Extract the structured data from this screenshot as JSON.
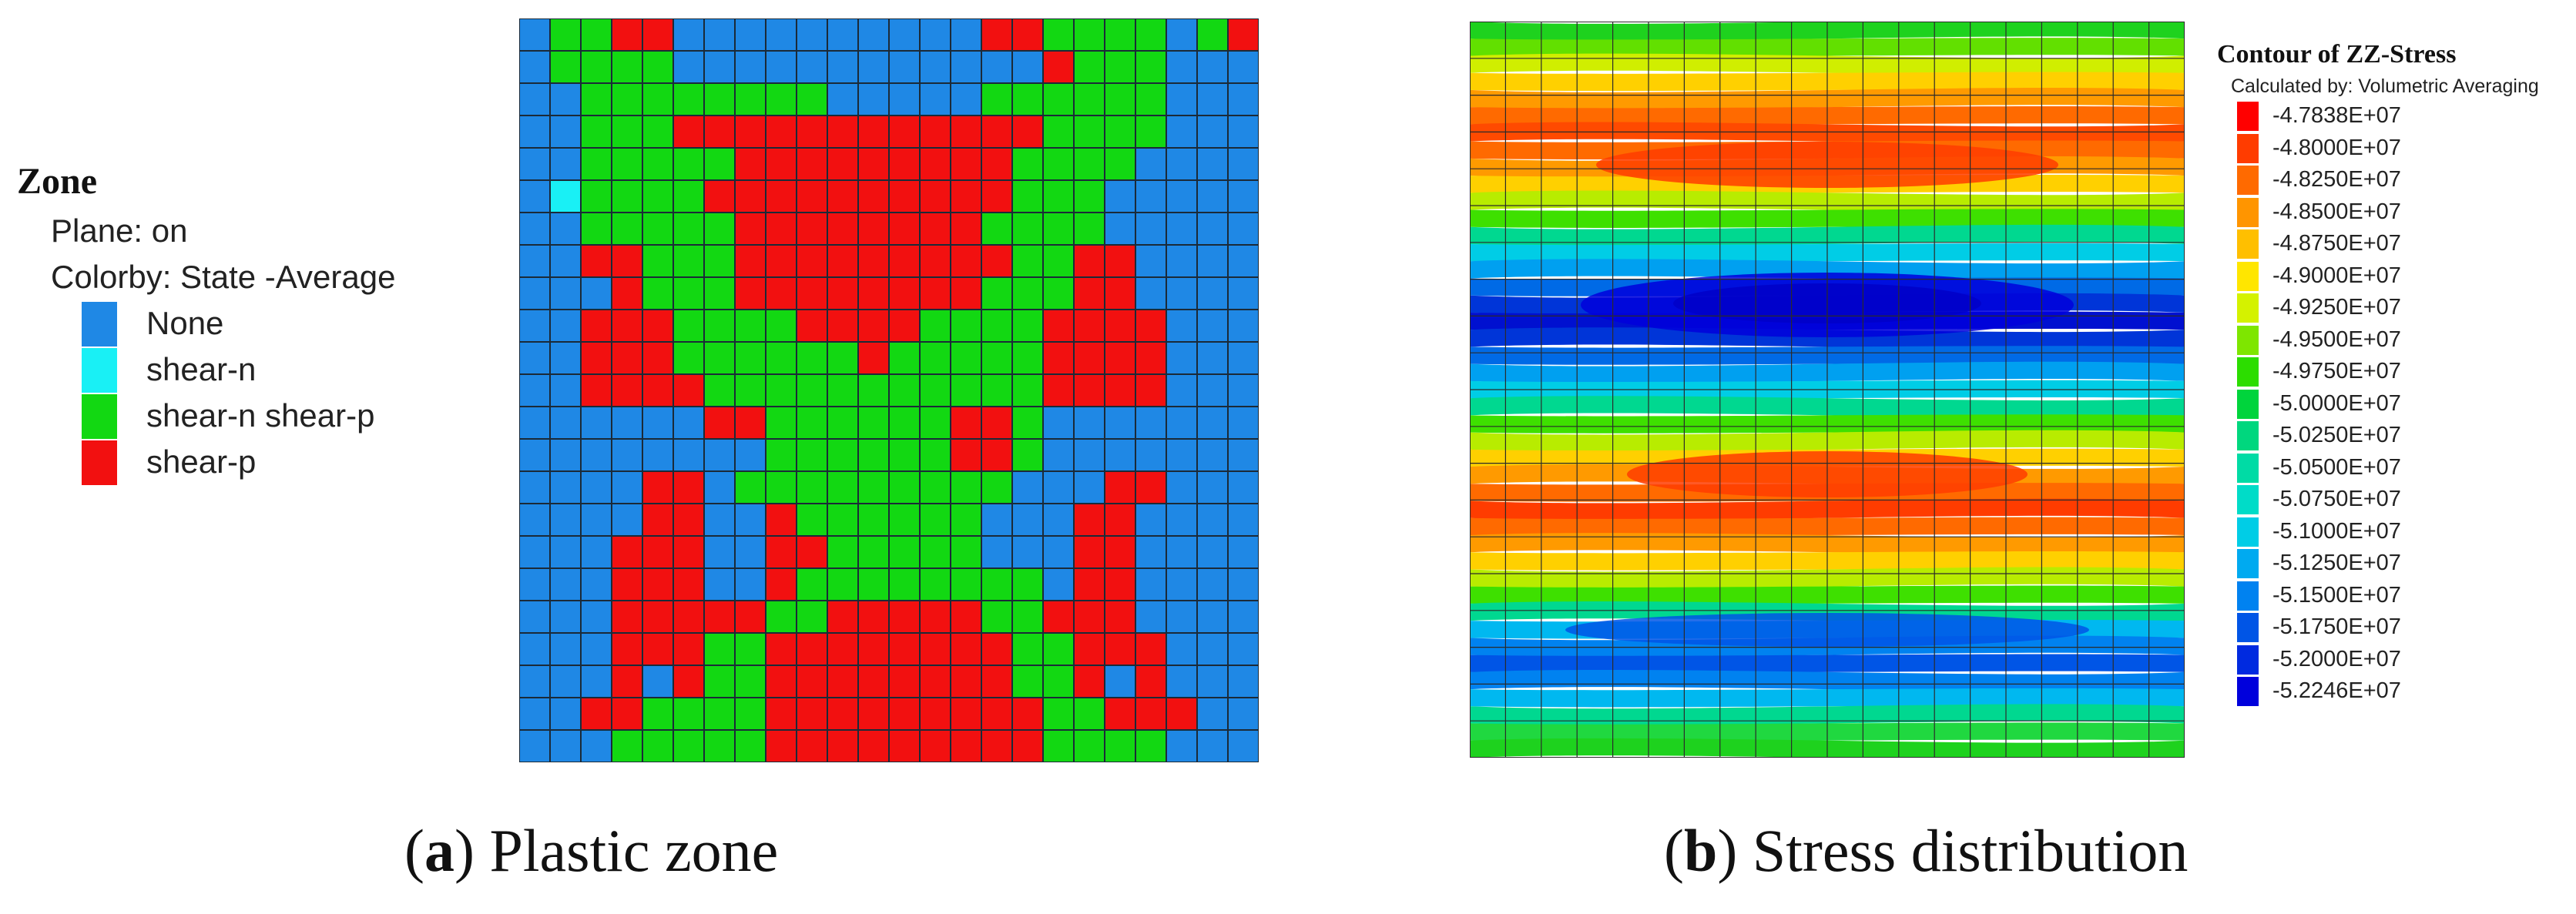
{
  "panel_a": {
    "legend": {
      "title": "Zone",
      "line1": "Plane: on",
      "line2": "Colorby: State  -Average",
      "items": [
        {
          "label": "None",
          "color": "#1f88e5"
        },
        {
          "label": "shear-n",
          "color": "#19f0f5"
        },
        {
          "label": "shear-n shear-p",
          "color": "#12d812"
        },
        {
          "label": "shear-p",
          "color": "#f21010"
        }
      ]
    },
    "grid": {
      "states": [
        "NSSPPNNNNNNNNNNPPSSSSNSP",
        "NSSSSNNNNNNNNNNNNPSSSNNN",
        "NNSSSSSSSSNNNNNSSSSSSNNN",
        "NNSSSPPPPPPPPPPPPSSSSNNN",
        "NNSSSSSPPPPPPPPPSSSSNNNN",
        "NCSSSSPPPPPPPPPPSSSNNNNN",
        "NNSSSSSPPPPPPPPSSSSNNNNN",
        "NNPPSSSPPPPPPPPPSSPPNNNN",
        "NNNPSSSPPPPPPPPSSSPPNNNN",
        "NNPPPSSSSPPPPSSSSPPPPNNN",
        "NNPPPSSSSSSPSSSSSPPPPNNN",
        "NNPPPPSSSSSSSSSSSPPPPNNN",
        "NNNNNNPPSSSSSSPPSNNNNNNN",
        "NNNNNNNNSSSSSSPPSNNNNNNN",
        "NNNNPPNSSSSSSSSSNNNPPNNN",
        "NNNNPPNNPSSSSSSNNNPPNNNN",
        "NNNPPPNNPPSSSSSNNNPPNNNN",
        "NNNPPPNNPSSSSSSSSNPPNNNN",
        "NNNPPPPPSSPPPPPSSPPPNNNN",
        "NNNPPPSSPPPPPPPPSSPPPNNN",
        "NNNPNPSSPPPPPPPPSSPNPNNN",
        "NNPPSSSSPPPPPPPPPSSPPPNN",
        "NNNSSSSSPPPPPPPPPSSSSNNN"
      ]
    },
    "caption": {
      "letter": "a",
      "text": "Plastic zone"
    }
  },
  "panel_b": {
    "legend": {
      "title": "Contour of ZZ-Stress",
      "subtitle": "Calculated by: Volumetric Averaging",
      "items": [
        {
          "label": "-4.7838E+07",
          "color": "#ff0000"
        },
        {
          "label": "-4.8000E+07",
          "color": "#ff3c00"
        },
        {
          "label": "-4.8250E+07",
          "color": "#ff6a00"
        },
        {
          "label": "-4.8500E+07",
          "color": "#ff9500"
        },
        {
          "label": "-4.8750E+07",
          "color": "#ffbf00"
        },
        {
          "label": "-4.9000E+07",
          "color": "#ffe600"
        },
        {
          "label": "-4.9250E+07",
          "color": "#d4f200"
        },
        {
          "label": "-4.9500E+07",
          "color": "#7ee600"
        },
        {
          "label": "-4.9750E+07",
          "color": "#2cdd00"
        },
        {
          "label": "-5.0000E+07",
          "color": "#00d43c"
        },
        {
          "label": "-5.0250E+07",
          "color": "#00d77e"
        },
        {
          "label": "-5.0500E+07",
          "color": "#00dba5"
        },
        {
          "label": "-5.0750E+07",
          "color": "#00dcc8"
        },
        {
          "label": "-5.1000E+07",
          "color": "#00cde6"
        },
        {
          "label": "-5.1250E+07",
          "color": "#00aaf0"
        },
        {
          "label": "-5.1500E+07",
          "color": "#0082f0"
        },
        {
          "label": "-5.1750E+07",
          "color": "#0055e6"
        },
        {
          "label": "-5.2000E+07",
          "color": "#002ae0"
        },
        {
          "label": "-5.2246E+07",
          "color": "#0000dc"
        }
      ]
    },
    "bands": [
      {
        "color": "#1ed21e"
      },
      {
        "color": "#62e000"
      },
      {
        "color": "#d0ee00"
      },
      {
        "color": "#ffd000"
      },
      {
        "color": "#ff9a00"
      },
      {
        "color": "#ff6a00"
      },
      {
        "color": "#ff4a00"
      },
      {
        "color": "#ff6a00"
      },
      {
        "color": "#ff9a00"
      },
      {
        "color": "#ffd000"
      },
      {
        "color": "#b8ec00"
      },
      {
        "color": "#3ee000"
      },
      {
        "color": "#00d890"
      },
      {
        "color": "#00cde6"
      },
      {
        "color": "#00a0f0"
      },
      {
        "color": "#006ae6"
      },
      {
        "color": "#0035d8"
      },
      {
        "color": "#0010d0"
      },
      {
        "color": "#0035d8"
      },
      {
        "color": "#006ae6"
      },
      {
        "color": "#00a0f0"
      },
      {
        "color": "#00cde6"
      },
      {
        "color": "#00d890"
      },
      {
        "color": "#3ee000"
      },
      {
        "color": "#b8ec00"
      },
      {
        "color": "#ffd000"
      },
      {
        "color": "#ff9a00"
      },
      {
        "color": "#ff6a00"
      },
      {
        "color": "#ff3c00"
      },
      {
        "color": "#ff6a00"
      },
      {
        "color": "#ff9a00"
      },
      {
        "color": "#ffd000"
      },
      {
        "color": "#b8ec00"
      },
      {
        "color": "#3ee000"
      },
      {
        "color": "#00d890"
      },
      {
        "color": "#00b8f0"
      },
      {
        "color": "#0082f0"
      },
      {
        "color": "#0055e6"
      },
      {
        "color": "#0082f0"
      },
      {
        "color": "#00b8f0"
      },
      {
        "color": "#00d890"
      },
      {
        "color": "#20d840"
      },
      {
        "color": "#1ed21e"
      }
    ],
    "caption": {
      "letter": "b",
      "text": "Stress distribution"
    }
  }
}
